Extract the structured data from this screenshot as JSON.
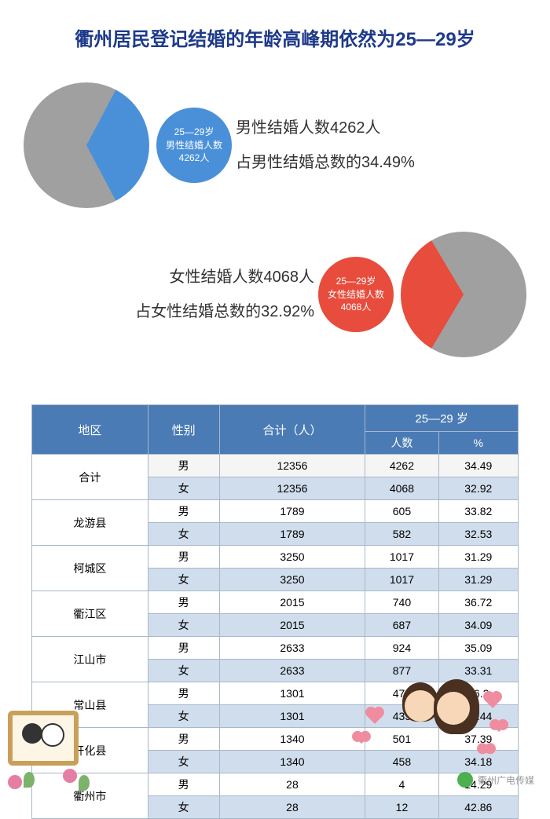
{
  "title": "衢州居民登记结婚的年龄高峰期依然为25—29岁",
  "male_chart": {
    "type": "pie",
    "percent": 34.49,
    "slice_color": "#4a90d9",
    "remainder_color": "#a0a0a0",
    "background_color": "#ffffff",
    "label_line1": "25—29岁",
    "label_line2": "男性结婚人数",
    "label_line3": "4262人",
    "label_circle_color": "#4a90d9",
    "label_font_color": "#ffffff",
    "label_fontsize": 12,
    "text_line1": "男性结婚人数4262人",
    "text_line2": "占男性结婚总数的34.49%",
    "text_color": "#333333",
    "text_fontsize": 20
  },
  "female_chart": {
    "type": "pie",
    "percent": 32.92,
    "slice_color": "#e74c3c",
    "remainder_color": "#a0a0a0",
    "background_color": "#ffffff",
    "label_line1": "25—29岁",
    "label_line2": "女性结婚人数",
    "label_line3": "4068人",
    "label_circle_color": "#e74c3c",
    "label_font_color": "#ffffff",
    "label_fontsize": 12,
    "text_line1": "女性结婚人数4068人",
    "text_line2": "占女性结婚总数的32.92%",
    "text_color": "#333333",
    "text_fontsize": 20
  },
  "table": {
    "type": "table",
    "header_bg": "#4a7bb5",
    "header_color": "#ffffff",
    "border_color": "#a8b8c8",
    "row_alt_bg": "#d0ddec",
    "row_bg": "#ffffff",
    "fontsize": 14,
    "columns": {
      "region": "地区",
      "gender": "性别",
      "total": "合计（人）",
      "age_group": "25—29 岁",
      "count": "人数",
      "percent": "%"
    },
    "genders": {
      "male": "男",
      "female": "女"
    },
    "regions": [
      {
        "name": "合计",
        "male": {
          "total": "12356",
          "count": "4262",
          "pct": "34.49"
        },
        "female": {
          "total": "12356",
          "count": "4068",
          "pct": "32.92"
        },
        "is_total": true
      },
      {
        "name": "龙游县",
        "male": {
          "total": "1789",
          "count": "605",
          "pct": "33.82"
        },
        "female": {
          "total": "1789",
          "count": "582",
          "pct": "32.53"
        }
      },
      {
        "name": "柯城区",
        "male": {
          "total": "3250",
          "count": "1017",
          "pct": "31.29"
        },
        "female": {
          "total": "3250",
          "count": "1017",
          "pct": "31.29"
        }
      },
      {
        "name": "衢江区",
        "male": {
          "total": "2015",
          "count": "740",
          "pct": "36.72"
        },
        "female": {
          "total": "2015",
          "count": "687",
          "pct": "34.09"
        }
      },
      {
        "name": "江山市",
        "male": {
          "total": "2633",
          "count": "924",
          "pct": "35.09"
        },
        "female": {
          "total": "2633",
          "count": "877",
          "pct": "33.31"
        }
      },
      {
        "name": "常山县",
        "male": {
          "total": "1301",
          "count": "471",
          "pct": "36.2"
        },
        "female": {
          "total": "1301",
          "count": "435",
          "pct": "33.44"
        }
      },
      {
        "name": "开化县",
        "male": {
          "total": "1340",
          "count": "501",
          "pct": "37.39"
        },
        "female": {
          "total": "1340",
          "count": "458",
          "pct": "34.18"
        }
      },
      {
        "name": "衢州市",
        "male": {
          "total": "28",
          "count": "4",
          "pct": "14.29"
        },
        "female": {
          "total": "28",
          "count": "12",
          "pct": "42.86"
        }
      }
    ]
  },
  "watermark": "衢州广电传媒"
}
